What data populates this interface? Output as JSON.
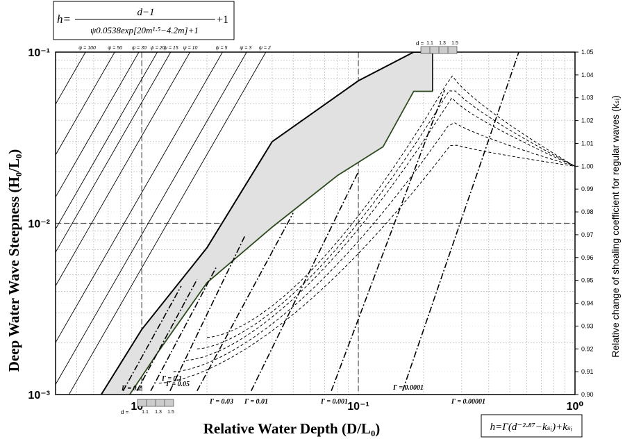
{
  "formula_top": {
    "lhs": "h=",
    "numerator": "d−1",
    "denominator": "ψ0.0538exp[20m¹·⁵−4.2m]+1",
    "tail": "+1"
  },
  "formula_bottom": "h=Γ(d⁻²·⁸⁷−kₛᵢ)+kₛᵢ",
  "d_scale": {
    "label": "d =",
    "ticks": [
      "1.1",
      "1.3",
      "1.5"
    ]
  },
  "chart_data": {
    "type": "line",
    "title": "",
    "xlabel": "Relative Water Depth (D/L₀)",
    "ylabel": "Deep Water Wave Steepness (H₀/L₀)",
    "y2label": "Relative change of shoaling coefficient for regular waves (kₛᵢ)",
    "x_scale": "log",
    "y_scale": "log",
    "xlim": [
      0.004,
      1.0
    ],
    "ylim": [
      0.001,
      0.1
    ],
    "x_ticks": [
      {
        "value": 0.01,
        "label": "10⁻²"
      },
      {
        "value": 0.1,
        "label": "10⁻¹"
      },
      {
        "value": 1.0,
        "label": "10⁰"
      }
    ],
    "y_ticks": [
      {
        "value": 0.1,
        "label": "10⁻¹"
      },
      {
        "value": 0.01,
        "label": "10⁻²"
      },
      {
        "value": 0.001,
        "label": "10⁻³"
      }
    ],
    "y2lim": [
      0.9,
      1.05
    ],
    "y2_ticks": [
      "0.90",
      "0.91",
      "0.92",
      "0.93",
      "0.94",
      "0.95",
      "0.96",
      "0.97",
      "0.98",
      "0.99",
      "1.00",
      "1.01",
      "1.02",
      "1.03",
      "1.04",
      "1.05"
    ],
    "grid": true,
    "psi_lines": [
      {
        "label": "ψ = 100",
        "x_at_top": 0.0055
      },
      {
        "label": "ψ = 50",
        "x_at_top": 0.0075
      },
      {
        "label": "ψ = 30",
        "x_at_top": 0.0097
      },
      {
        "label": "ψ = 20",
        "x_at_top": 0.0118
      },
      {
        "label": "ψ = 15",
        "x_at_top": 0.0136
      },
      {
        "label": "ψ = 10",
        "x_at_top": 0.0167
      },
      {
        "label": "ψ = 5",
        "x_at_top": 0.0236
      },
      {
        "label": "ψ = 3",
        "x_at_top": 0.0305
      },
      {
        "label": "ψ = 2",
        "x_at_top": 0.0374
      }
    ],
    "gamma_lines": [
      {
        "label": "Γ = 0.2",
        "x": [
          0.0082,
          0.0152
        ],
        "y": [
          0.00105,
          0.0043
        ]
      },
      {
        "label": "Γ = 0.1",
        "x": [
          0.0095,
          0.018
        ],
        "y": [
          0.00105,
          0.0047
        ]
      },
      {
        "label": "Γ = 0.05",
        "x": [
          0.011,
          0.022
        ],
        "y": [
          0.00105,
          0.0055
        ]
      },
      {
        "label": "Γ = 0.03",
        "x": [
          0.0135,
          0.03
        ],
        "y": [
          0.00105,
          0.0085
        ]
      },
      {
        "label": "Γ = 0.01",
        "x": [
          0.018,
          0.05
        ],
        "y": [
          0.00105,
          0.0115
        ]
      },
      {
        "label": "Γ = 0.001",
        "x": [
          0.032,
          0.1
        ],
        "y": [
          0.00105,
          0.02
        ]
      },
      {
        "label": "Γ = 0.0001",
        "x": [
          0.075,
          0.25
        ],
        "y": [
          0.00105,
          0.06
        ]
      },
      {
        "label": "Γ = 0.00001",
        "x": [
          0.16,
          0.55
        ],
        "y": [
          0.00105,
          0.1
        ]
      }
    ],
    "envelope_upper": {
      "x": [
        0.0065,
        0.01,
        0.02,
        0.04,
        0.1,
        0.18
      ],
      "y": [
        0.001,
        0.0024,
        0.0072,
        0.03,
        0.068,
        0.1
      ]
    },
    "envelope_lower": {
      "x": [
        0.0088,
        0.012,
        0.02,
        0.04,
        0.08,
        0.13
      ],
      "y": [
        0.001,
        0.0018,
        0.0045,
        0.0095,
        0.019,
        0.028
      ]
    },
    "breaking_band": {
      "x_from": 0.18,
      "x_to": 0.22,
      "y_lower": 0.059,
      "y_upper": 0.1
    },
    "shoaling_curves_ksi_peak": [
      1.01,
      1.02,
      1.03,
      1.035,
      1.04
    ]
  },
  "colors": {
    "band": "#e1e1e1",
    "envelope": "#2d4a1e",
    "axis": "#000000",
    "grid": "#9a9a9a"
  }
}
